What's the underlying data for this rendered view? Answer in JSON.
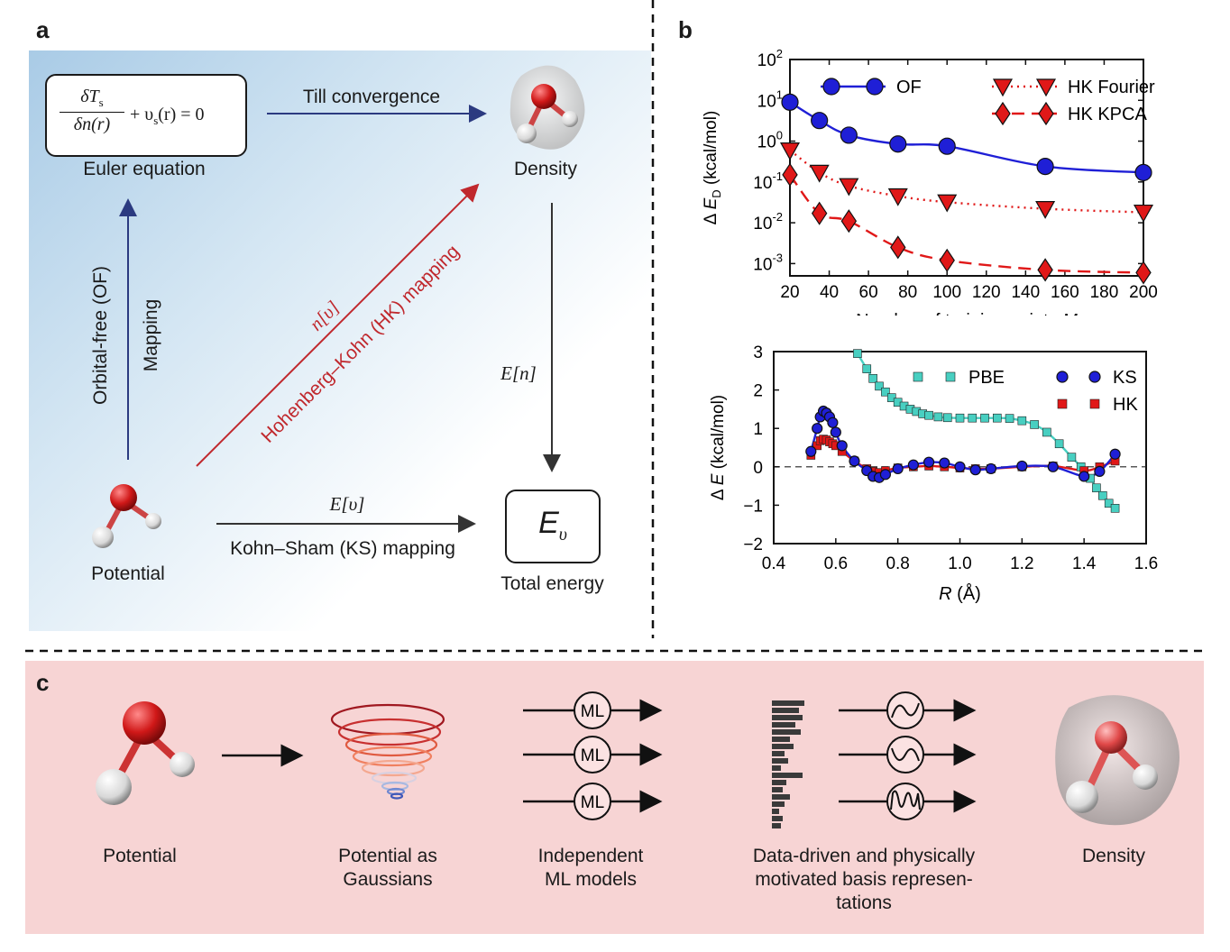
{
  "panel_a": {
    "letter": "a",
    "euler_frac_top": "δT",
    "euler_frac_top_sub": "s",
    "euler_frac_bottom": "δn(r)",
    "euler_rest": "+ υ",
    "euler_rest_sub": "s",
    "euler_rest_tail": "(r) = 0",
    "euler_label": "Euler equation",
    "till_convergence": "Till convergence",
    "density_label": "Density",
    "of_label": "Orbital-free (OF)",
    "mapping_label": "Mapping",
    "hk_label": "Hohenberg–Kohn (HK) mapping",
    "n_v_label": "n[υ]",
    "e_n_label": "E[n]",
    "potential_label": "Potential",
    "e_v_label": "E[υ]",
    "ks_label": "Kohn–Sham (KS) mapping",
    "total_energy_label": "Total energy",
    "e_v_box": "E",
    "e_v_box_sub": "υ",
    "colors": {
      "blue_arrow": "#2b3a80",
      "red_arrow": "#c0282d",
      "dark_arrow": "#333333"
    }
  },
  "panel_b": {
    "letter": "b"
  },
  "panel_c": {
    "letter": "c",
    "labels": [
      "Potential",
      "Potential as\nGaussians",
      "Independent\nML models",
      "Data-driven and physically\nmotivated basis represen-\ntations",
      "Density"
    ],
    "ml_text": "ML"
  },
  "chart_data": [
    {
      "type": "line",
      "y_scale": "log",
      "xlabel": "Number of training points M",
      "ylabel": "Δ E_D (kcal/mol)",
      "xlim": [
        20,
        200
      ],
      "ylim": [
        0.0005,
        100
      ],
      "xticks": [
        20,
        40,
        60,
        80,
        100,
        120,
        140,
        160,
        180,
        200
      ],
      "yticks": [
        0.001,
        0.01,
        0.1,
        1,
        10,
        100
      ],
      "ytick_labels": [
        "10^-3",
        "10^-2",
        "10^-1",
        "10^0",
        "10^1",
        "10^2"
      ],
      "legend_position": "top",
      "series": [
        {
          "name": "OF",
          "color": "#1f1fd6",
          "marker": "circle",
          "dash": "solid",
          "x": [
            20,
            35,
            50,
            75,
            100,
            150,
            200
          ],
          "y": [
            9,
            3.2,
            1.4,
            0.85,
            0.75,
            0.24,
            0.17
          ]
        },
        {
          "name": "HK Fourier",
          "color": "#e01818",
          "marker": "triangle-down",
          "dash": "dot",
          "x": [
            20,
            35,
            50,
            75,
            100,
            150,
            200
          ],
          "y": [
            0.6,
            0.17,
            0.08,
            0.045,
            0.032,
            0.022,
            0.018
          ]
        },
        {
          "name": "HK KPCA",
          "color": "#e01818",
          "marker": "diamond",
          "dash": "dash",
          "x": [
            20,
            35,
            50,
            75,
            100,
            150,
            200
          ],
          "y": [
            0.15,
            0.017,
            0.011,
            0.0025,
            0.0012,
            0.0007,
            0.0006
          ]
        }
      ]
    },
    {
      "type": "line",
      "xlabel": "R (Å)",
      "ylabel": "Δ E (kcal/mol)",
      "xlim": [
        0.4,
        1.6
      ],
      "ylim": [
        -2,
        3
      ],
      "xticks": [
        0.4,
        0.6,
        0.8,
        1.0,
        1.2,
        1.4,
        1.6
      ],
      "xtick_labels": [
        "0.4",
        "0.6",
        "0.8",
        "1.0",
        "1.2",
        "1.4",
        "1.6"
      ],
      "yticks": [
        -2,
        -1,
        0,
        1,
        2,
        3
      ],
      "legend_position": "top-right",
      "series": [
        {
          "name": "PBE",
          "color": "#48cfc1",
          "marker": "square",
          "x": [
            0.67,
            0.7,
            0.72,
            0.74,
            0.76,
            0.78,
            0.8,
            0.82,
            0.84,
            0.86,
            0.88,
            0.9,
            0.93,
            0.96,
            1.0,
            1.04,
            1.08,
            1.12,
            1.16,
            1.2,
            1.24,
            1.28,
            1.32,
            1.36,
            1.39,
            1.42,
            1.44,
            1.46,
            1.48,
            1.5
          ],
          "y": [
            2.95,
            2.55,
            2.3,
            2.1,
            1.95,
            1.8,
            1.68,
            1.58,
            1.5,
            1.44,
            1.38,
            1.34,
            1.3,
            1.28,
            1.27,
            1.27,
            1.27,
            1.27,
            1.26,
            1.2,
            1.1,
            0.9,
            0.6,
            0.25,
            0.0,
            -0.3,
            -0.55,
            -0.75,
            -0.95,
            -1.08
          ]
        },
        {
          "name": "KS",
          "color": "#1f1fd6",
          "marker": "circle",
          "x": [
            0.52,
            0.54,
            0.55,
            0.56,
            0.57,
            0.58,
            0.59,
            0.6,
            0.62,
            0.66,
            0.7,
            0.72,
            0.74,
            0.76,
            0.8,
            0.85,
            0.9,
            0.95,
            1.0,
            1.05,
            1.1,
            1.2,
            1.3,
            1.4,
            1.45,
            1.5
          ],
          "y": [
            0.4,
            1.0,
            1.3,
            1.45,
            1.4,
            1.3,
            1.15,
            0.9,
            0.55,
            0.15,
            -0.1,
            -0.25,
            -0.28,
            -0.2,
            -0.05,
            0.05,
            0.12,
            0.1,
            0.0,
            -0.08,
            -0.05,
            0.02,
            0.0,
            -0.25,
            -0.12,
            0.33
          ]
        },
        {
          "name": "HK",
          "color": "#e01818",
          "marker": "square",
          "x": [
            0.52,
            0.54,
            0.55,
            0.56,
            0.57,
            0.58,
            0.59,
            0.6,
            0.62,
            0.66,
            0.7,
            0.72,
            0.74,
            0.76,
            0.8,
            0.85,
            0.9,
            0.95,
            1.0,
            1.05,
            1.1,
            1.2,
            1.3,
            1.4,
            1.45,
            1.5
          ],
          "y": [
            0.3,
            0.55,
            0.68,
            0.72,
            0.7,
            0.65,
            0.6,
            0.55,
            0.4,
            0.15,
            -0.05,
            -0.12,
            -0.15,
            -0.1,
            -0.03,
            0.0,
            0.02,
            0.0,
            -0.03,
            -0.05,
            -0.05,
            0.0,
            0.02,
            -0.1,
            0.0,
            0.15
          ]
        }
      ]
    }
  ]
}
